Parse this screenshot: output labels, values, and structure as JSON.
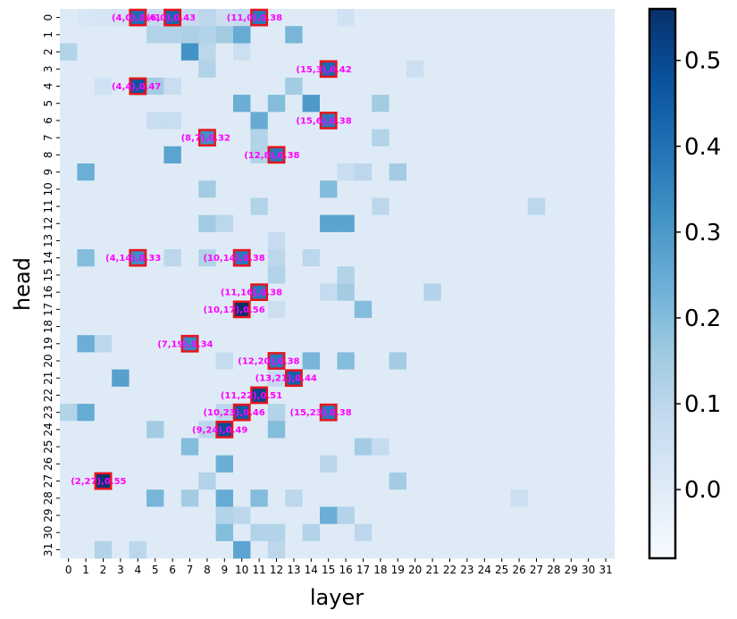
{
  "chart_data": {
    "type": "heatmap",
    "xlabel": "layer",
    "ylabel": "head",
    "x_ticks": [
      "0",
      "1",
      "2",
      "3",
      "4",
      "5",
      "6",
      "7",
      "8",
      "9",
      "10",
      "11",
      "12",
      "13",
      "14",
      "15",
      "16",
      "17",
      "18",
      "19",
      "20",
      "21",
      "22",
      "23",
      "24",
      "25",
      "26",
      "27",
      "28",
      "29",
      "30",
      "31"
    ],
    "y_ticks": [
      "0",
      "1",
      "2",
      "3",
      "4",
      "5",
      "6",
      "7",
      "8",
      "9",
      "10",
      "11",
      "12",
      "13",
      "14",
      "15",
      "16",
      "17",
      "18",
      "19",
      "20",
      "21",
      "22",
      "23",
      "24",
      "25",
      "26",
      "27",
      "28",
      "29",
      "30",
      "31"
    ],
    "colormap": "Blues",
    "vmin": -0.08,
    "vmax": 0.56,
    "colorbar_ticks": [
      "0.0",
      "0.1",
      "0.2",
      "0.3",
      "0.4",
      "0.5"
    ],
    "colorbar_tick_values": [
      0.0,
      0.1,
      0.2,
      0.3,
      0.4,
      0.5
    ],
    "background_value": 0.0,
    "annotations": [
      {
        "layer": 4,
        "head": 0,
        "value": 0.41,
        "label": "(4,0),0.41"
      },
      {
        "layer": 6,
        "head": 0,
        "value": 0.43,
        "label": "(6,0),0.43"
      },
      {
        "layer": 11,
        "head": 0,
        "value": 0.38,
        "label": "(11,0),0.38"
      },
      {
        "layer": 15,
        "head": 3,
        "value": 0.42,
        "label": "(15,3),0.42"
      },
      {
        "layer": 4,
        "head": 4,
        "value": 0.47,
        "label": "(4,4),0.47"
      },
      {
        "layer": 15,
        "head": 6,
        "value": 0.38,
        "label": "(15,6),0.38"
      },
      {
        "layer": 8,
        "head": 7,
        "value": 0.32,
        "label": "(8,7),0.32"
      },
      {
        "layer": 12,
        "head": 8,
        "value": 0.38,
        "label": "(12,8),0.38"
      },
      {
        "layer": 4,
        "head": 14,
        "value": 0.33,
        "label": "(4,14),0.33"
      },
      {
        "layer": 10,
        "head": 14,
        "value": 0.38,
        "label": "(10,14),0.38"
      },
      {
        "layer": 11,
        "head": 16,
        "value": 0.38,
        "label": "(11,16),0.38"
      },
      {
        "layer": 10,
        "head": 17,
        "value": 0.56,
        "label": "(10,17),0.56"
      },
      {
        "layer": 7,
        "head": 19,
        "value": 0.34,
        "label": "(7,19),0.34"
      },
      {
        "layer": 12,
        "head": 20,
        "value": 0.38,
        "label": "(12,20),0.38"
      },
      {
        "layer": 13,
        "head": 21,
        "value": 0.44,
        "label": "(13,21),0.44"
      },
      {
        "layer": 11,
        "head": 22,
        "value": 0.51,
        "label": "(11,22),0.51"
      },
      {
        "layer": 10,
        "head": 23,
        "value": 0.46,
        "label": "(10,23),0.46"
      },
      {
        "layer": 15,
        "head": 23,
        "value": 0.38,
        "label": "(15,23),0.38"
      },
      {
        "layer": 9,
        "head": 24,
        "value": 0.49,
        "label": "(9,24),0.49"
      },
      {
        "layer": 2,
        "head": 27,
        "value": 0.55,
        "label": "(2,27),0.55"
      }
    ],
    "cells": [
      {
        "layer": 1,
        "head": 0,
        "value": 0.02
      },
      {
        "layer": 2,
        "head": 0,
        "value": 0.03
      },
      {
        "layer": 3,
        "head": 0,
        "value": 0.04
      },
      {
        "layer": 5,
        "head": 0,
        "value": 0.08
      },
      {
        "layer": 7,
        "head": 0,
        "value": 0.08
      },
      {
        "layer": 8,
        "head": 0,
        "value": 0.1
      },
      {
        "layer": 9,
        "head": 0,
        "value": 0.06
      },
      {
        "layer": 10,
        "head": 0,
        "value": 0.08
      },
      {
        "layer": 16,
        "head": 0,
        "value": 0.05
      },
      {
        "layer": 5,
        "head": 1,
        "value": 0.12
      },
      {
        "layer": 6,
        "head": 1,
        "value": 0.12
      },
      {
        "layer": 7,
        "head": 1,
        "value": 0.13
      },
      {
        "layer": 8,
        "head": 1,
        "value": 0.12
      },
      {
        "layer": 9,
        "head": 1,
        "value": 0.15
      },
      {
        "layer": 10,
        "head": 1,
        "value": 0.25
      },
      {
        "layer": 13,
        "head": 1,
        "value": 0.22
      },
      {
        "layer": 0,
        "head": 2,
        "value": 0.12
      },
      {
        "layer": 7,
        "head": 2,
        "value": 0.32
      },
      {
        "layer": 8,
        "head": 2,
        "value": 0.1
      },
      {
        "layer": 10,
        "head": 2,
        "value": 0.06
      },
      {
        "layer": 8,
        "head": 3,
        "value": 0.12
      },
      {
        "layer": 20,
        "head": 3,
        "value": 0.06
      },
      {
        "layer": 2,
        "head": 4,
        "value": 0.05
      },
      {
        "layer": 5,
        "head": 4,
        "value": 0.15
      },
      {
        "layer": 6,
        "head": 4,
        "value": 0.07
      },
      {
        "layer": 13,
        "head": 4,
        "value": 0.15
      },
      {
        "layer": 10,
        "head": 5,
        "value": 0.24
      },
      {
        "layer": 12,
        "head": 5,
        "value": 0.2
      },
      {
        "layer": 14,
        "head": 5,
        "value": 0.3
      },
      {
        "layer": 18,
        "head": 5,
        "value": 0.15
      },
      {
        "layer": 11,
        "head": 6,
        "value": 0.25
      },
      {
        "layer": 5,
        "head": 6,
        "value": 0.07
      },
      {
        "layer": 6,
        "head": 6,
        "value": 0.07
      },
      {
        "layer": 11,
        "head": 7,
        "value": 0.12
      },
      {
        "layer": 18,
        "head": 7,
        "value": 0.12
      },
      {
        "layer": 6,
        "head": 8,
        "value": 0.27
      },
      {
        "layer": 11,
        "head": 8,
        "value": 0.12
      },
      {
        "layer": 1,
        "head": 9,
        "value": 0.24
      },
      {
        "layer": 19,
        "head": 9,
        "value": 0.15
      },
      {
        "layer": 16,
        "head": 9,
        "value": 0.07
      },
      {
        "layer": 17,
        "head": 9,
        "value": 0.1
      },
      {
        "layer": 8,
        "head": 10,
        "value": 0.15
      },
      {
        "layer": 15,
        "head": 10,
        "value": 0.2
      },
      {
        "layer": 11,
        "head": 11,
        "value": 0.12
      },
      {
        "layer": 18,
        "head": 11,
        "value": 0.1
      },
      {
        "layer": 27,
        "head": 11,
        "value": 0.1
      },
      {
        "layer": 8,
        "head": 12,
        "value": 0.15
      },
      {
        "layer": 9,
        "head": 12,
        "value": 0.1
      },
      {
        "layer": 15,
        "head": 12,
        "value": 0.27
      },
      {
        "layer": 16,
        "head": 12,
        "value": 0.27
      },
      {
        "layer": 12,
        "head": 13,
        "value": 0.08
      },
      {
        "layer": 1,
        "head": 14,
        "value": 0.2
      },
      {
        "layer": 6,
        "head": 14,
        "value": 0.1
      },
      {
        "layer": 8,
        "head": 14,
        "value": 0.12
      },
      {
        "layer": 12,
        "head": 14,
        "value": 0.1
      },
      {
        "layer": 14,
        "head": 14,
        "value": 0.1
      },
      {
        "layer": 16,
        "head": 15,
        "value": 0.12
      },
      {
        "layer": 12,
        "head": 15,
        "value": 0.12
      },
      {
        "layer": 16,
        "head": 16,
        "value": 0.15
      },
      {
        "layer": 21,
        "head": 16,
        "value": 0.12
      },
      {
        "layer": 15,
        "head": 16,
        "value": 0.08
      },
      {
        "layer": 17,
        "head": 17,
        "value": 0.2
      },
      {
        "layer": 12,
        "head": 17,
        "value": 0.06
      },
      {
        "layer": 1,
        "head": 19,
        "value": 0.24
      },
      {
        "layer": 2,
        "head": 19,
        "value": 0.1
      },
      {
        "layer": 14,
        "head": 20,
        "value": 0.22
      },
      {
        "layer": 16,
        "head": 20,
        "value": 0.2
      },
      {
        "layer": 19,
        "head": 20,
        "value": 0.15
      },
      {
        "layer": 9,
        "head": 20,
        "value": 0.08
      },
      {
        "layer": 3,
        "head": 21,
        "value": 0.28
      },
      {
        "layer": 12,
        "head": 21,
        "value": 0.08
      },
      {
        "layer": 0,
        "head": 23,
        "value": 0.12
      },
      {
        "layer": 1,
        "head": 23,
        "value": 0.25
      },
      {
        "layer": 9,
        "head": 23,
        "value": 0.1
      },
      {
        "layer": 12,
        "head": 23,
        "value": 0.12
      },
      {
        "layer": 5,
        "head": 24,
        "value": 0.15
      },
      {
        "layer": 12,
        "head": 24,
        "value": 0.2
      },
      {
        "layer": 8,
        "head": 24,
        "value": 0.1
      },
      {
        "layer": 7,
        "head": 25,
        "value": 0.2
      },
      {
        "layer": 17,
        "head": 25,
        "value": 0.15
      },
      {
        "layer": 18,
        "head": 25,
        "value": 0.08
      },
      {
        "layer": 9,
        "head": 26,
        "value": 0.24
      },
      {
        "layer": 15,
        "head": 26,
        "value": 0.1
      },
      {
        "layer": 8,
        "head": 27,
        "value": 0.12
      },
      {
        "layer": 19,
        "head": 27,
        "value": 0.15
      },
      {
        "layer": 5,
        "head": 28,
        "value": 0.22
      },
      {
        "layer": 7,
        "head": 28,
        "value": 0.15
      },
      {
        "layer": 9,
        "head": 28,
        "value": 0.25
      },
      {
        "layer": 11,
        "head": 28,
        "value": 0.2
      },
      {
        "layer": 13,
        "head": 28,
        "value": 0.1
      },
      {
        "layer": 26,
        "head": 28,
        "value": 0.06
      },
      {
        "layer": 9,
        "head": 29,
        "value": 0.12
      },
      {
        "layer": 10,
        "head": 29,
        "value": 0.1
      },
      {
        "layer": 15,
        "head": 29,
        "value": 0.24
      },
      {
        "layer": 16,
        "head": 29,
        "value": 0.12
      },
      {
        "layer": 9,
        "head": 30,
        "value": 0.2
      },
      {
        "layer": 11,
        "head": 30,
        "value": 0.12
      },
      {
        "layer": 12,
        "head": 30,
        "value": 0.12
      },
      {
        "layer": 14,
        "head": 30,
        "value": 0.12
      },
      {
        "layer": 17,
        "head": 30,
        "value": 0.1
      },
      {
        "layer": 2,
        "head": 31,
        "value": 0.12
      },
      {
        "layer": 4,
        "head": 31,
        "value": 0.1
      },
      {
        "layer": 10,
        "head": 31,
        "value": 0.27
      },
      {
        "layer": 12,
        "head": 31,
        "value": 0.1
      }
    ]
  }
}
